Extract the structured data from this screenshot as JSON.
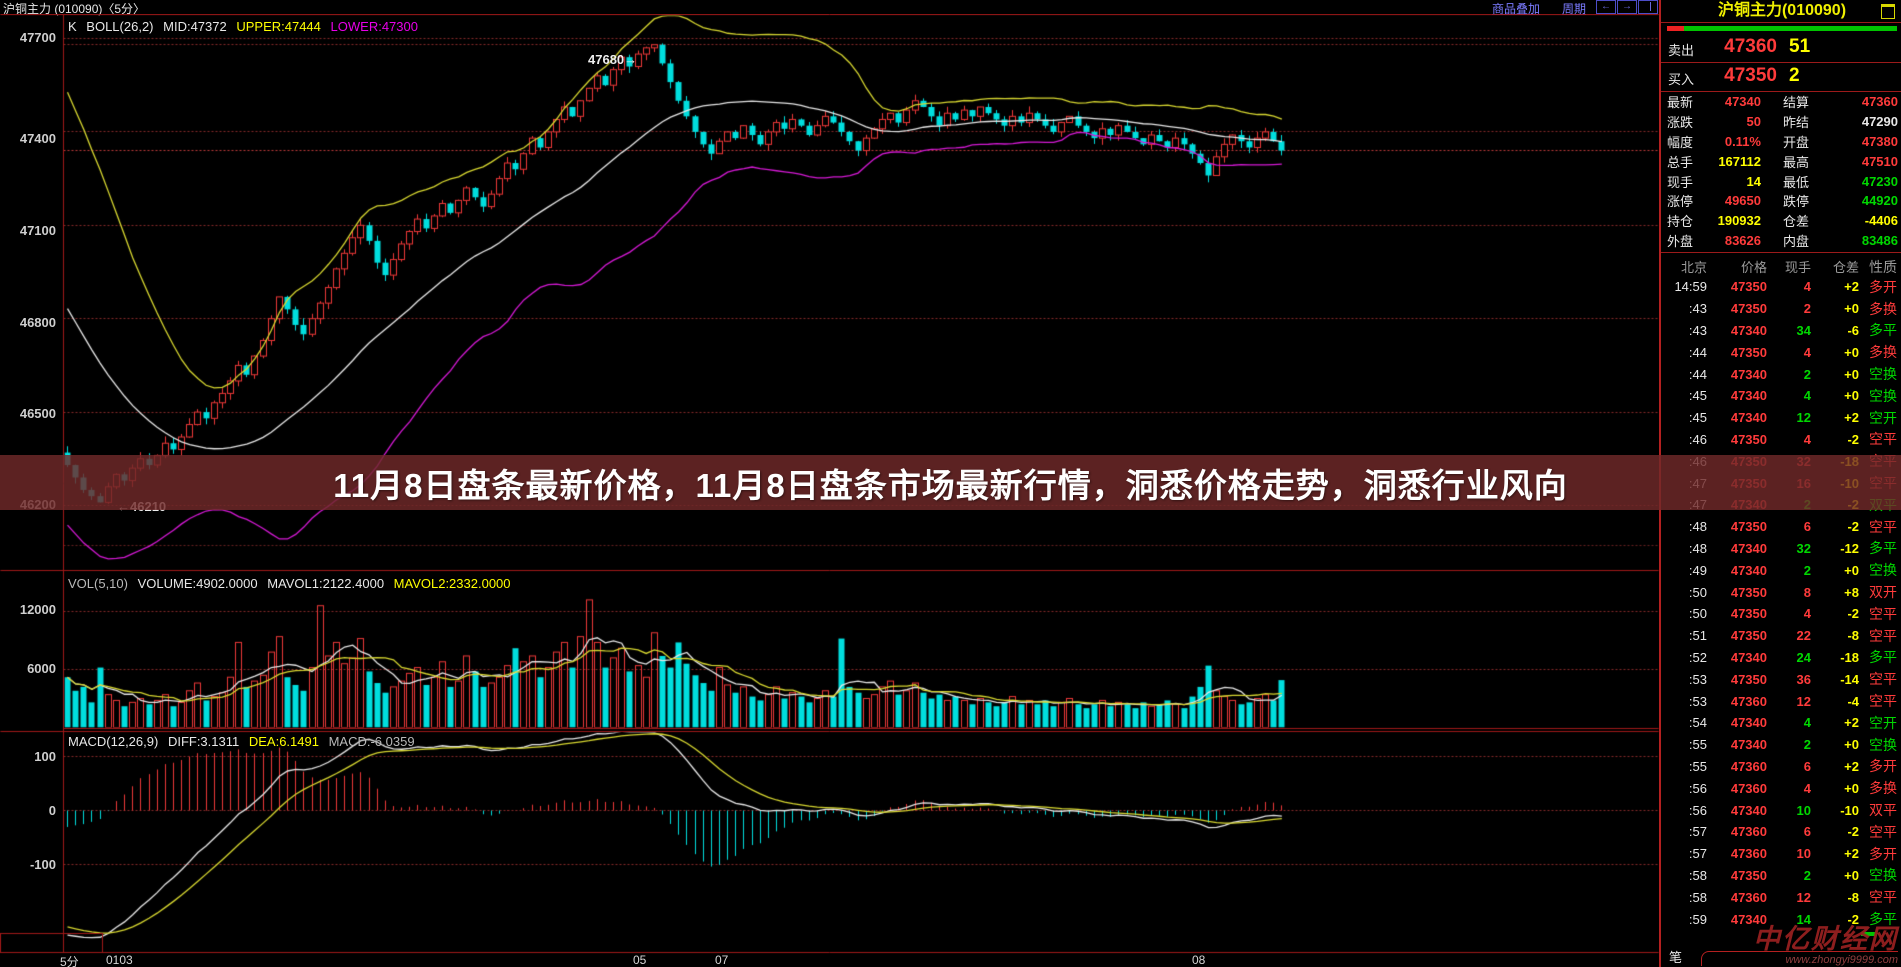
{
  "colors": {
    "up_red": "#ee3838",
    "down_cyan": "#00dede",
    "boll_upper": "#d8d830",
    "boll_mid": "#e8e8e8",
    "boll_lower": "#d619d6",
    "grid": "#8a2b2b",
    "frame": "#a01818",
    "last_price_line": "#c23a3a",
    "accent_yellow": "#ffff00",
    "accent_green": "#00d800",
    "accent_red": "#ff3b3b"
  },
  "top_bar": {
    "tab_title": "沪铜主力 (010090)〈5分〉",
    "overlay_link": "商品叠加",
    "period_link": "周期",
    "back_icon": "←",
    "forward_icon": "→"
  },
  "main_chart": {
    "k_label": "K",
    "boll_label": "BOLL(26,2)",
    "mid": "MID:47372",
    "upper": "UPPER:47444",
    "lower": "LOWER:47300",
    "y_labels": [
      "47700",
      "47400",
      "47100",
      "46800",
      "46500",
      "46200"
    ],
    "high_annotation": "47680→",
    "low_annotation": "←46210"
  },
  "banner": {
    "text": "11月8日盘条最新价格，11月8日盘条市场最新行情，洞悉价格走势，洞悉行业风向"
  },
  "volume_pane": {
    "name": "VOL(5,10)",
    "volume": "VOLUME:4902.0000",
    "mavol1": "MAVOL1:2122.4000",
    "mavol2": "MAVOL2:2332.0000",
    "y_labels": [
      "12000",
      "6000"
    ]
  },
  "macd_pane": {
    "name": "MACD(12,26,9)",
    "diff": "DIFF:3.1311",
    "dea": "DEA:6.1491",
    "macd": "MACD:-6.0359",
    "y_labels": [
      "100",
      "0",
      "-100"
    ]
  },
  "x_axis": {
    "period": "5分",
    "labels": [
      "0103",
      "05",
      "07",
      "08"
    ]
  },
  "quote_panel": {
    "title": "沪铜主力(010090)",
    "ask_label": "卖出",
    "ask_price": "47360",
    "ask_qty": "51",
    "bid_label": "买入",
    "bid_price": "47350",
    "bid_qty": "2",
    "stats": [
      {
        "l1": "最新",
        "v1": "47340",
        "c1": "red",
        "l2": "结算",
        "v2": "47360",
        "c2": "red"
      },
      {
        "l1": "涨跌",
        "v1": "50",
        "c1": "red",
        "l2": "昨结",
        "v2": "47290",
        "c2": "white"
      },
      {
        "l1": "幅度",
        "v1": "0.11%",
        "c1": "red",
        "l2": "开盘",
        "v2": "47380",
        "c2": "red"
      },
      {
        "l1": "总手",
        "v1": "167112",
        "c1": "yellow",
        "l2": "最高",
        "v2": "47510",
        "c2": "red"
      },
      {
        "l1": "现手",
        "v1": "14",
        "c1": "yellow",
        "l2": "最低",
        "v2": "47230",
        "c2": "green"
      },
      {
        "l1": "涨停",
        "v1": "49650",
        "c1": "red",
        "l2": "跌停",
        "v2": "44920",
        "c2": "green"
      },
      {
        "l1": "持仓",
        "v1": "190932",
        "c1": "yellow",
        "l2": "仓差",
        "v2": "-4406",
        "c2": "yellow"
      },
      {
        "l1": "外盘",
        "v1": "83626",
        "c1": "red",
        "l2": "内盘",
        "v2": "83486",
        "c2": "green"
      }
    ],
    "table_headers": [
      "北京",
      "价格",
      "现手",
      "仓差",
      "性质"
    ],
    "rows": [
      [
        "14:59",
        "47350",
        "4",
        "+2",
        "多开",
        "red",
        "red",
        "red"
      ],
      [
        ":43",
        "47350",
        "2",
        "+0",
        "多换",
        "red",
        "red",
        "red"
      ],
      [
        ":43",
        "47340",
        "34",
        "-6",
        "多平",
        "red",
        "green",
        "green"
      ],
      [
        ":44",
        "47350",
        "4",
        "+0",
        "多换",
        "red",
        "red",
        "red"
      ],
      [
        ":44",
        "47340",
        "2",
        "+0",
        "空换",
        "red",
        "green",
        "green"
      ],
      [
        ":45",
        "47340",
        "4",
        "+0",
        "空换",
        "red",
        "green",
        "green"
      ],
      [
        ":45",
        "47340",
        "12",
        "+2",
        "空开",
        "red",
        "green",
        "green"
      ],
      [
        ":46",
        "47350",
        "4",
        "-2",
        "空平",
        "red",
        "red",
        "red"
      ],
      [
        ":46",
        "47350",
        "32",
        "-18",
        "空平",
        "red",
        "red",
        "red"
      ],
      [
        ":47",
        "47350",
        "16",
        "-10",
        "空平",
        "red",
        "red",
        "red"
      ],
      [
        ":47",
        "47340",
        "2",
        "-2",
        "双平",
        "red",
        "green",
        "green"
      ],
      [
        ":48",
        "47350",
        "6",
        "-2",
        "空平",
        "red",
        "red",
        "red"
      ],
      [
        ":48",
        "47340",
        "32",
        "-12",
        "多平",
        "red",
        "green",
        "green"
      ],
      [
        ":49",
        "47340",
        "2",
        "+0",
        "空换",
        "red",
        "green",
        "green"
      ],
      [
        ":50",
        "47350",
        "8",
        "+8",
        "双开",
        "red",
        "red",
        "red"
      ],
      [
        ":50",
        "47350",
        "4",
        "-2",
        "空平",
        "red",
        "red",
        "red"
      ],
      [
        ":51",
        "47350",
        "22",
        "-8",
        "空平",
        "red",
        "red",
        "red"
      ],
      [
        ":52",
        "47340",
        "24",
        "-18",
        "多平",
        "red",
        "green",
        "green"
      ],
      [
        ":53",
        "47350",
        "36",
        "-14",
        "空平",
        "red",
        "red",
        "red"
      ],
      [
        ":53",
        "47360",
        "12",
        "-4",
        "空平",
        "red",
        "red",
        "red"
      ],
      [
        ":54",
        "47340",
        "4",
        "+2",
        "空开",
        "red",
        "green",
        "green"
      ],
      [
        ":55",
        "47340",
        "2",
        "+0",
        "空换",
        "red",
        "green",
        "green"
      ],
      [
        ":55",
        "47360",
        "6",
        "+2",
        "多开",
        "red",
        "red",
        "red"
      ],
      [
        ":56",
        "47360",
        "4",
        "+0",
        "多换",
        "red",
        "red",
        "red"
      ],
      [
        ":56",
        "47340",
        "10",
        "-10",
        "双平",
        "red",
        "green",
        "red"
      ],
      [
        ":57",
        "47360",
        "6",
        "-2",
        "空平",
        "red",
        "red",
        "red"
      ],
      [
        ":57",
        "47360",
        "10",
        "+2",
        "多开",
        "red",
        "red",
        "red"
      ],
      [
        ":58",
        "47350",
        "2",
        "+0",
        "空换",
        "red",
        "green",
        "green"
      ],
      [
        ":58",
        "47360",
        "12",
        "-8",
        "空平",
        "red",
        "red",
        "red"
      ],
      [
        ":59",
        "47340",
        "14",
        "-2",
        "多平",
        "red",
        "green",
        "green"
      ]
    ],
    "bottom_tab": "笔"
  },
  "watermark": {
    "name": "中亿财经网",
    "url": "www.zhongyi9999.com"
  },
  "chart_data": {
    "type": "candlestick",
    "symbol": "沪铜主力(010090)",
    "interval": "5分",
    "session_high": 47680,
    "session_low": 46210,
    "last_price": 47340,
    "price_gridlines": [
      47700,
      47400,
      47100,
      46800,
      46500,
      46200
    ],
    "volume_gridlines": [
      12000,
      6000
    ],
    "macd_gridlines": [
      100,
      0,
      -100
    ],
    "boll": {
      "period": 26,
      "width": 2
    },
    "prehistory_closes": [
      47450,
      47400,
      47380,
      47300,
      47260,
      47200,
      47150,
      47100,
      47000,
      46950,
      46900,
      46850,
      46800,
      46760,
      46700,
      46650,
      46620,
      46580,
      46550,
      46520,
      46500,
      46470,
      46440,
      46410,
      46370
    ],
    "closes": [
      46330,
      46290,
      46250,
      46230,
      46210,
      46260,
      46300,
      46280,
      46320,
      46350,
      46330,
      46360,
      46400,
      46380,
      46420,
      46460,
      46500,
      46480,
      46530,
      46560,
      46600,
      46650,
      46620,
      46680,
      46730,
      46800,
      46870,
      46830,
      46780,
      46750,
      46800,
      46850,
      46900,
      46960,
      47010,
      47060,
      47100,
      47050,
      46980,
      46940,
      46990,
      47040,
      47080,
      47120,
      47090,
      47130,
      47170,
      47140,
      47180,
      47220,
      47190,
      47160,
      47200,
      47250,
      47300,
      47280,
      47330,
      47380,
      47350,
      47400,
      47440,
      47480,
      47450,
      47500,
      47540,
      47580,
      47550,
      47600,
      47640,
      47610,
      47650,
      47670,
      47680,
      47620,
      47560,
      47500,
      47450,
      47400,
      47360,
      47330,
      47370,
      47400,
      47380,
      47420,
      47390,
      47360,
      47400,
      47430,
      47410,
      47440,
      47420,
      47390,
      47420,
      47450,
      47430,
      47400,
      47370,
      47340,
      47380,
      47410,
      47440,
      47460,
      47430,
      47470,
      47500,
      47480,
      47450,
      47420,
      47460,
      47440,
      47470,
      47450,
      47480,
      47460,
      47440,
      47420,
      47450,
      47430,
      47460,
      47440,
      47420,
      47400,
      47430,
      47450,
      47420,
      47400,
      47380,
      47410,
      47390,
      47420,
      47400,
      47380,
      47360,
      47390,
      47370,
      47350,
      47380,
      47360,
      47330,
      47300,
      47260,
      47320,
      47360,
      47390,
      47370,
      47350,
      47380,
      47400,
      47370,
      47340
    ],
    "volumes": [
      5200,
      3800,
      4200,
      2600,
      6200,
      3400,
      2800,
      2200,
      2600,
      3000,
      2400,
      2800,
      3400,
      2200,
      2600,
      3800,
      4600,
      2800,
      3200,
      3600,
      5200,
      8800,
      4200,
      4800,
      5400,
      7800,
      9400,
      5200,
      4400,
      3800,
      6200,
      12600,
      7400,
      8800,
      6600,
      7200,
      9200,
      5800,
      4600,
      3600,
      4200,
      4800,
      5600,
      6200,
      4400,
      5200,
      6800,
      4200,
      4800,
      7400,
      5800,
      4200,
      4600,
      5200,
      6400,
      8200,
      6800,
      7400,
      5200,
      6200,
      7800,
      8800,
      6200,
      9400,
      13200,
      8800,
      6200,
      7200,
      8200,
      5800,
      6400,
      5200,
      9800,
      7400,
      6200,
      8800,
      6600,
      5400,
      4600,
      3800,
      6200,
      4400,
      3600,
      4200,
      3200,
      2800,
      3400,
      4200,
      3000,
      3600,
      3200,
      2600,
      3000,
      3800,
      3200,
      9200,
      4200,
      3600,
      3000,
      3400,
      4200,
      4800,
      3400,
      3800,
      4600,
      3600,
      3000,
      3400,
      2800,
      3200,
      2800,
      2400,
      3000,
      2600,
      2200,
      2600,
      3200,
      2400,
      2800,
      2400,
      2800,
      2200,
      2600,
      3000,
      2400,
      2000,
      2400,
      2800,
      2200,
      2600,
      2400,
      2000,
      2600,
      2200,
      2400,
      2800,
      2400,
      2000,
      3200,
      4200,
      6400,
      3800,
      3200,
      2800,
      2400,
      2600,
      3000,
      3400,
      2800,
      4902
    ]
  }
}
